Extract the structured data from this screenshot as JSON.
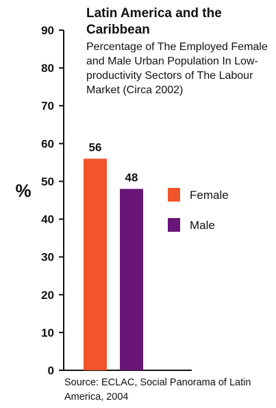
{
  "chart_data": {
    "type": "bar",
    "title": "Latin America and the Caribbean",
    "subtitle": "Percentage of The Employed Female and Male Urban Population In Low-productivity Sectors of The Labour Market (Circa 2002)",
    "ylabel": "%",
    "xlabel": "",
    "ylim": [
      0,
      90
    ],
    "yticks": [
      0,
      10,
      20,
      30,
      40,
      50,
      60,
      70,
      80,
      90
    ],
    "categories": [
      "Female",
      "Male"
    ],
    "values": [
      56,
      48
    ],
    "data_labels": [
      "56",
      "48"
    ],
    "colors": [
      "#f2552c",
      "#6a1578"
    ],
    "legend": {
      "position": "right",
      "entries": [
        {
          "label": "Female",
          "color": "#f2552c"
        },
        {
          "label": "Male",
          "color": "#6a1578"
        }
      ]
    },
    "grid": false,
    "source": "Source: ECLAC, Social Panorama of Latin America, 2004"
  }
}
